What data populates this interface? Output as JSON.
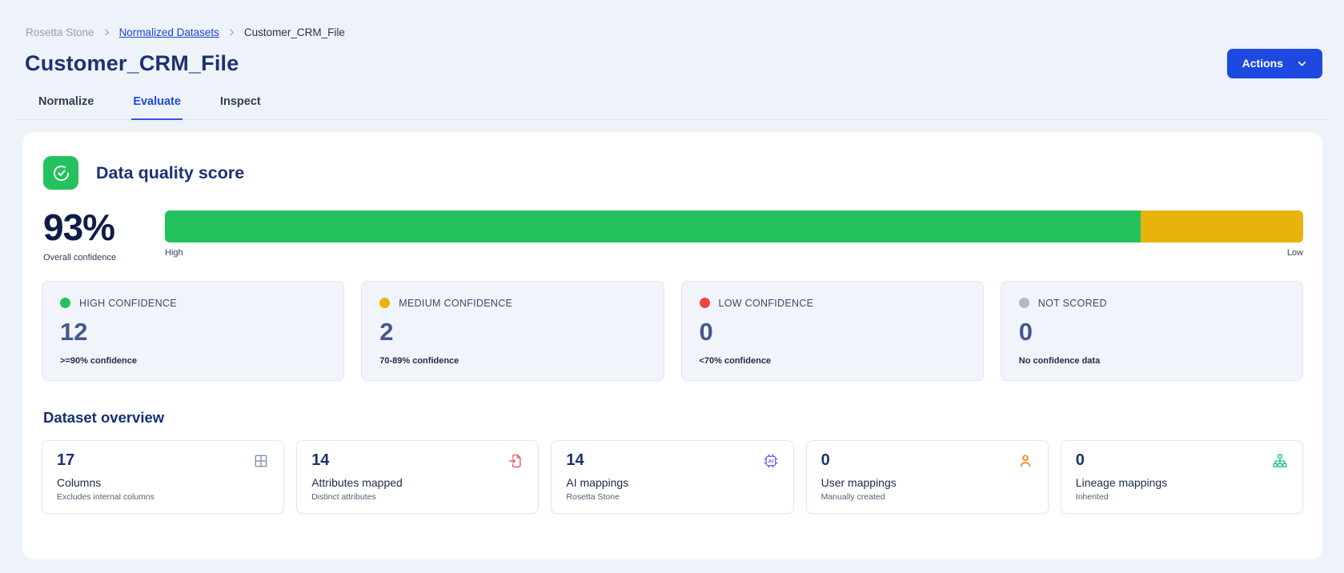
{
  "colors": {
    "accent": "#1d49e0",
    "green": "#24c25e",
    "yellow": "#e8b40b",
    "red": "#f04444",
    "gray": "#b3bac4"
  },
  "breadcrumb": {
    "root": "Rosetta Stone",
    "link": "Normalized Datasets",
    "current": "Customer_CRM_File"
  },
  "header": {
    "title": "Customer_CRM_File",
    "actions_label": "Actions"
  },
  "tabs": [
    {
      "label": "Normalize",
      "active": false
    },
    {
      "label": "Evaluate",
      "active": true
    },
    {
      "label": "Inspect",
      "active": false
    }
  ],
  "quality": {
    "section_title": "Data quality score",
    "score": "93%",
    "score_caption": "Overall confidence",
    "bar": {
      "left_label": "High",
      "right_label": "Low",
      "segments": [
        {
          "name": "high",
          "color": "#24c25e",
          "pct": 85.7
        },
        {
          "name": "medium",
          "color": "#e8b40b",
          "pct": 14.3
        }
      ]
    },
    "cards": [
      {
        "label": "HIGH CONFIDENCE",
        "value": "12",
        "desc": ">=90% confidence",
        "dot_color": "#24c25e"
      },
      {
        "label": "MEDIUM CONFIDENCE",
        "value": "2",
        "desc": "70-89% confidence",
        "dot_color": "#eab308"
      },
      {
        "label": "LOW CONFIDENCE",
        "value": "0",
        "desc": "<70% confidence",
        "dot_color": "#f04444"
      },
      {
        "label": "NOT SCORED",
        "value": "0",
        "desc": "No confidence data",
        "dot_color": "#b3bac4"
      }
    ]
  },
  "overview": {
    "section_title": "Dataset overview",
    "cards": [
      {
        "value": "17",
        "label": "Columns",
        "desc": "Excludes internal columns",
        "icon": "table-icon",
        "icon_color": "#8593ad"
      },
      {
        "value": "14",
        "label": "Attributes mapped",
        "desc": "Distinct attributes",
        "icon": "import-document-icon",
        "icon_color": "#ec5f6d"
      },
      {
        "value": "14",
        "label": "AI mappings",
        "desc": "Rosetta Stone",
        "icon": "ai-chip-icon",
        "icon_color": "#6a5ce8"
      },
      {
        "value": "0",
        "label": "User mappings",
        "desc": "Manually created",
        "icon": "user-icon",
        "icon_color": "#f87c1b"
      },
      {
        "value": "0",
        "label": "Lineage mappings",
        "desc": "Inherited",
        "icon": "lineage-icon",
        "icon_color": "#21ba8f"
      }
    ]
  }
}
